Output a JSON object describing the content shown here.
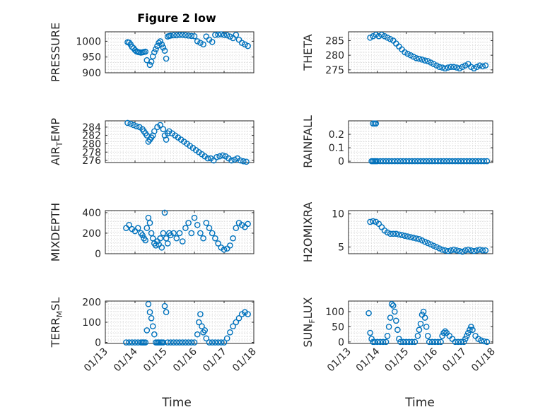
{
  "figure": {
    "title": "Figure 2 low",
    "marker_color": "#0072BD",
    "xlabel": "Time",
    "xticks": [
      "01/13",
      "01/14",
      "01/15",
      "01/16",
      "01/17",
      "01/18"
    ]
  },
  "chart_data": [
    {
      "type": "scatter",
      "title": "Figure 2 low",
      "ylabel": "PRESSURE",
      "xlim": [
        0,
        5
      ],
      "ylim": [
        900,
        1030
      ],
      "yticks": [
        "900",
        "950",
        "1000"
      ],
      "grid": true,
      "x": [
        0.75,
        0.8,
        0.85,
        0.9,
        0.95,
        1.0,
        1.05,
        1.1,
        1.15,
        1.2,
        1.25,
        1.3,
        1.35,
        1.4,
        1.5,
        1.55,
        1.6,
        1.65,
        1.7,
        1.75,
        1.8,
        1.85,
        1.9,
        1.95,
        2.0,
        2.05,
        2.1,
        2.15,
        2.2,
        2.3,
        2.4,
        2.5,
        2.6,
        2.7,
        2.8,
        2.9,
        3.0,
        3.1,
        3.2,
        3.3,
        3.4,
        3.5,
        3.6,
        3.7,
        3.8,
        3.9,
        4.0,
        4.1,
        4.2,
        4.3,
        4.4,
        4.5,
        4.6,
        4.7,
        4.8
      ],
      "y": [
        997,
        996,
        990,
        982,
        978,
        972,
        968,
        966,
        965,
        964,
        965,
        966,
        967,
        940,
        925,
        935,
        952,
        965,
        975,
        985,
        995,
        1000,
        990,
        980,
        970,
        945,
        1015,
        1017,
        1018,
        1019,
        1019,
        1020,
        1020,
        1019,
        1018,
        1017,
        1016,
        1000,
        995,
        990,
        1015,
        1005,
        998,
        1020,
        1021,
        1022,
        1020,
        1019,
        1015,
        1010,
        1020,
        1005,
        995,
        990,
        985
      ]
    },
    {
      "type": "scatter",
      "ylabel": "THETA",
      "xlim": [
        0,
        5
      ],
      "ylim": [
        274,
        288
      ],
      "yticks": [
        "275",
        "280",
        "285"
      ],
      "grid": true,
      "x": [
        0.75,
        0.85,
        0.95,
        1.05,
        1.15,
        1.25,
        1.35,
        1.45,
        1.55,
        1.65,
        1.75,
        1.85,
        1.95,
        2.05,
        2.15,
        2.25,
        2.35,
        2.45,
        2.55,
        2.65,
        2.75,
        2.85,
        2.95,
        3.05,
        3.15,
        3.25,
        3.35,
        3.45,
        3.55,
        3.65,
        3.75,
        3.85,
        3.95,
        4.05,
        4.15,
        4.25,
        4.35,
        4.45,
        4.55,
        4.65,
        4.75
      ],
      "y": [
        286,
        286.5,
        287,
        286.5,
        287,
        286.5,
        286,
        285.5,
        285,
        284,
        283,
        282,
        281,
        280.5,
        280,
        279.5,
        279,
        278.8,
        278.5,
        278.2,
        278,
        277.5,
        277,
        276.5,
        276,
        275.8,
        275.5,
        275.8,
        276,
        276,
        275.8,
        275.5,
        276,
        276.5,
        277,
        276,
        275.5,
        276,
        276.5,
        276.2,
        276.5
      ]
    },
    {
      "type": "scatter",
      "ylabel": "AIR_TEMP",
      "xlim": [
        0,
        5
      ],
      "ylim": [
        275.5,
        285.5
      ],
      "yticks": [
        "276",
        "278",
        "280",
        "282",
        "284"
      ],
      "grid": true,
      "x": [
        0.75,
        0.85,
        0.95,
        1.05,
        1.15,
        1.25,
        1.3,
        1.35,
        1.4,
        1.45,
        1.5,
        1.55,
        1.6,
        1.65,
        1.75,
        1.85,
        1.95,
        2.0,
        2.05,
        2.1,
        2.15,
        2.25,
        2.35,
        2.45,
        2.55,
        2.65,
        2.75,
        2.85,
        2.95,
        3.05,
        3.15,
        3.25,
        3.35,
        3.45,
        3.55,
        3.65,
        3.75,
        3.85,
        3.95,
        4.05,
        4.15,
        4.25,
        4.35,
        4.45,
        4.55,
        4.65,
        4.75
      ],
      "y": [
        285,
        284.8,
        284.5,
        284.2,
        284,
        283.5,
        283,
        282.5,
        282,
        280.5,
        281,
        281.5,
        282,
        283,
        284,
        284.5,
        283.5,
        282,
        281,
        282.5,
        283,
        282.5,
        282,
        281.5,
        281,
        280.5,
        280,
        279.5,
        279,
        278.5,
        278,
        277.5,
        277,
        276.5,
        276.5,
        276,
        276.8,
        277,
        277.2,
        277,
        276.5,
        276,
        276.2,
        276.5,
        276,
        275.8,
        275.7
      ]
    },
    {
      "type": "scatter",
      "ylabel": "RAINFALL",
      "xlim": [
        0,
        5
      ],
      "ylim": [
        -0.01,
        0.3
      ],
      "yticks": [
        "0",
        "0.1",
        "0.2"
      ],
      "grid": true,
      "x": [
        0.8,
        0.85,
        0.9,
        0.95,
        1.0,
        1.1,
        1.2,
        1.3,
        1.4,
        1.5,
        1.6,
        1.7,
        1.8,
        1.9,
        2.0,
        2.1,
        2.2,
        2.3,
        2.4,
        2.5,
        2.6,
        2.7,
        2.8,
        2.9,
        3.0,
        3.1,
        3.2,
        3.3,
        3.4,
        3.5,
        3.6,
        3.7,
        3.8,
        3.9,
        4.0,
        4.1,
        4.2,
        4.3,
        4.4,
        4.5,
        4.6,
        4.7,
        4.8,
        0.85,
        0.9,
        0.95
      ],
      "y": [
        0,
        0,
        0,
        0,
        0,
        0,
        0,
        0,
        0,
        0,
        0,
        0,
        0,
        0,
        0,
        0,
        0,
        0,
        0,
        0,
        0,
        0,
        0,
        0,
        0,
        0,
        0,
        0,
        0,
        0,
        0,
        0,
        0,
        0,
        0,
        0,
        0,
        0,
        0,
        0,
        0,
        0,
        0,
        0.28,
        0.28,
        0.28
      ]
    },
    {
      "type": "scatter",
      "ylabel": "MIXDEPTH",
      "xlim": [
        0,
        5
      ],
      "ylim": [
        0,
        420
      ],
      "yticks": [
        "0",
        "200",
        "400"
      ],
      "grid": true,
      "x": [
        0.7,
        0.8,
        0.9,
        1.0,
        1.1,
        1.2,
        1.25,
        1.3,
        1.35,
        1.4,
        1.45,
        1.5,
        1.55,
        1.6,
        1.65,
        1.7,
        1.75,
        1.8,
        1.85,
        1.9,
        1.95,
        2.0,
        2.05,
        2.1,
        2.15,
        2.2,
        2.3,
        2.4,
        2.5,
        2.6,
        2.7,
        2.8,
        2.9,
        3.0,
        3.1,
        3.2,
        3.3,
        3.4,
        3.5,
        3.6,
        3.7,
        3.8,
        3.9,
        4.0,
        4.1,
        4.2,
        4.3,
        4.4,
        4.5,
        4.6,
        4.7,
        4.8
      ],
      "y": [
        250,
        280,
        240,
        220,
        250,
        200,
        180,
        150,
        130,
        250,
        350,
        300,
        200,
        150,
        100,
        80,
        120,
        90,
        150,
        60,
        200,
        400,
        150,
        100,
        200,
        180,
        200,
        150,
        200,
        120,
        250,
        300,
        200,
        350,
        280,
        200,
        150,
        300,
        250,
        200,
        150,
        100,
        60,
        40,
        50,
        80,
        150,
        250,
        300,
        280,
        260,
        290
      ]
    },
    {
      "type": "scatter",
      "ylabel": "H2OMIXRA",
      "xlim": [
        0,
        5
      ],
      "ylim": [
        4,
        10.5
      ],
      "yticks": [
        "5",
        "10"
      ],
      "grid": true,
      "x": [
        0.75,
        0.85,
        0.95,
        1.05,
        1.15,
        1.25,
        1.35,
        1.45,
        1.55,
        1.65,
        1.75,
        1.85,
        1.95,
        2.05,
        2.15,
        2.25,
        2.35,
        2.45,
        2.55,
        2.65,
        2.75,
        2.85,
        2.95,
        3.05,
        3.15,
        3.25,
        3.35,
        3.45,
        3.55,
        3.65,
        3.75,
        3.85,
        3.95,
        4.05,
        4.15,
        4.25,
        4.35,
        4.45,
        4.55,
        4.65,
        4.75
      ],
      "y": [
        8.8,
        8.9,
        8.8,
        8.5,
        8,
        7.5,
        7.2,
        7,
        7,
        7,
        6.9,
        6.8,
        6.7,
        6.6,
        6.5,
        6.4,
        6.3,
        6.2,
        6,
        5.8,
        5.6,
        5.4,
        5.2,
        5,
        4.8,
        4.6,
        4.5,
        4.4,
        4.5,
        4.6,
        4.5,
        4.4,
        4.3,
        4.5,
        4.6,
        4.5,
        4.4,
        4.5,
        4.6,
        4.5,
        4.5
      ]
    },
    {
      "type": "scatter",
      "ylabel": "TERR_MSL",
      "xlim": [
        0,
        5
      ],
      "ylim": [
        -5,
        205
      ],
      "yticks": [
        "0",
        "100",
        "200"
      ],
      "grid": true,
      "x": [
        0.7,
        0.8,
        0.9,
        1.0,
        1.1,
        1.2,
        1.25,
        1.3,
        1.35,
        1.4,
        1.45,
        1.5,
        1.55,
        1.6,
        1.65,
        1.7,
        1.75,
        1.8,
        1.85,
        1.9,
        1.95,
        2.0,
        2.05,
        2.1,
        2.2,
        2.3,
        2.4,
        2.5,
        2.6,
        2.7,
        2.8,
        2.9,
        3.0,
        3.1,
        3.15,
        3.2,
        3.25,
        3.3,
        3.35,
        3.4,
        3.5,
        3.6,
        3.7,
        3.8,
        3.9,
        4.0,
        4.1,
        4.2,
        4.3,
        4.4,
        4.5,
        4.6,
        4.7,
        4.8
      ],
      "y": [
        0,
        0,
        0,
        0,
        0,
        0,
        0,
        0,
        0,
        60,
        190,
        150,
        120,
        80,
        40,
        0,
        0,
        0,
        0,
        0,
        0,
        180,
        150,
        0,
        0,
        0,
        0,
        0,
        0,
        0,
        0,
        0,
        0,
        40,
        100,
        140,
        80,
        50,
        60,
        20,
        0,
        0,
        0,
        0,
        0,
        0,
        20,
        50,
        80,
        100,
        120,
        140,
        150,
        140
      ]
    },
    {
      "type": "scatter",
      "ylabel": "SUN_FLUX",
      "xlim": [
        0,
        5
      ],
      "ylim": [
        -5,
        135
      ],
      "yticks": [
        "0",
        "50",
        "100"
      ],
      "grid": true,
      "x": [
        0.7,
        0.75,
        0.8,
        0.85,
        0.9,
        1.0,
        1.1,
        1.2,
        1.3,
        1.35,
        1.4,
        1.45,
        1.5,
        1.55,
        1.6,
        1.65,
        1.7,
        1.75,
        1.8,
        1.9,
        2.0,
        2.1,
        2.2,
        2.3,
        2.4,
        2.45,
        2.5,
        2.55,
        2.6,
        2.65,
        2.7,
        2.75,
        2.8,
        2.9,
        3.0,
        3.1,
        3.2,
        3.25,
        3.3,
        3.35,
        3.4,
        3.5,
        3.6,
        3.7,
        3.8,
        3.9,
        4.0,
        4.05,
        4.1,
        4.15,
        4.2,
        4.25,
        4.3,
        4.4,
        4.5,
        4.6,
        4.7,
        4.8
      ],
      "y": [
        95,
        30,
        10,
        0,
        0,
        0,
        0,
        0,
        0,
        20,
        50,
        80,
        125,
        120,
        100,
        70,
        40,
        10,
        0,
        0,
        0,
        0,
        0,
        0,
        20,
        40,
        60,
        90,
        100,
        80,
        50,
        20,
        0,
        0,
        0,
        0,
        0,
        20,
        30,
        35,
        30,
        20,
        10,
        0,
        0,
        0,
        0,
        10,
        20,
        30,
        40,
        50,
        40,
        20,
        10,
        5,
        2,
        0
      ]
    }
  ]
}
